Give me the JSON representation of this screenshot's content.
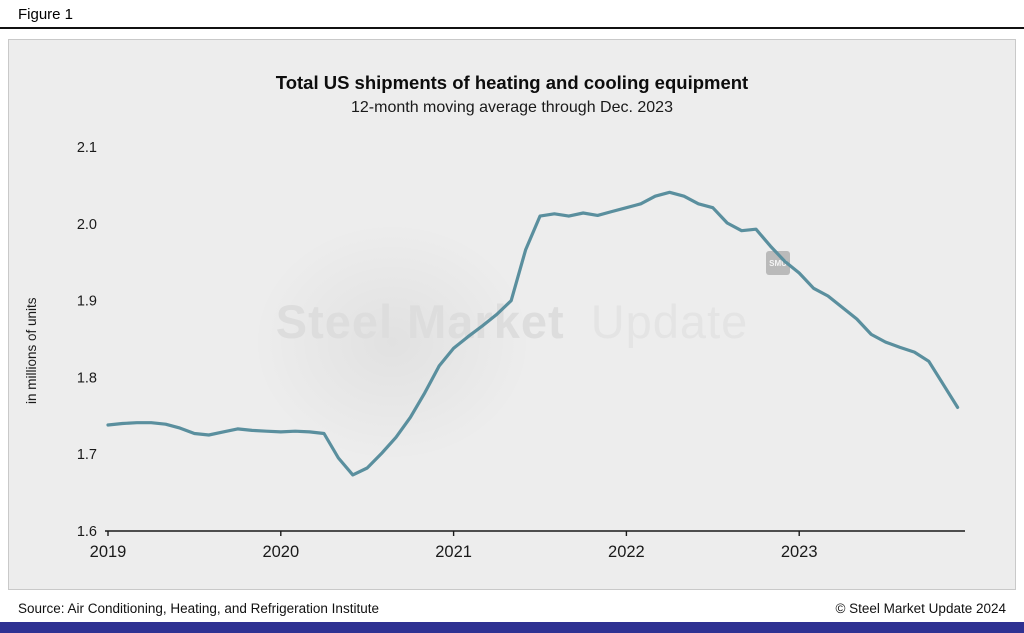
{
  "figure_label": "Figure 1",
  "title": "Total US shipments of heating and cooling equipment",
  "subtitle": "12-month moving average through Dec. 2023",
  "y_axis_label": "in millions of units",
  "watermark": {
    "primary": "Steel Market",
    "secondary": "Update",
    "badge": "SMU"
  },
  "footer": {
    "source": "Source: Air Conditioning, Heating, and Refrigeration Institute",
    "copyright": "© Steel Market Update 2024"
  },
  "colors": {
    "line": "#5A8F9E",
    "panel_bg": "#EDEDED",
    "footer_bar": "#2E3192",
    "axis": "#1a1a1a"
  },
  "chart_data": {
    "type": "line",
    "title": "Total US shipments of heating and cooling equipment",
    "subtitle": "12-month moving average through Dec. 2023",
    "xlabel": "",
    "ylabel": "in millions of units",
    "x_ticks": [
      "2019",
      "2020",
      "2021",
      "2022",
      "2023"
    ],
    "y_ticks": [
      1.6,
      1.7,
      1.8,
      1.9,
      2.0,
      2.1
    ],
    "ylim": [
      1.6,
      2.1
    ],
    "x_start": "2019-01",
    "x_end": "2023-12",
    "x_frequency": "monthly",
    "grid": false,
    "legend": false,
    "series": [
      {
        "name": "12-month moving average of US heating and cooling equipment shipments (millions of units)",
        "values": [
          1.738,
          1.74,
          1.741,
          1.741,
          1.739,
          1.734,
          1.727,
          1.725,
          1.729,
          1.733,
          1.731,
          1.73,
          1.729,
          1.73,
          1.729,
          1.727,
          1.695,
          1.673,
          1.682,
          1.701,
          1.722,
          1.748,
          1.78,
          1.815,
          1.838,
          1.853,
          1.867,
          1.882,
          1.9,
          1.966,
          2.01,
          2.013,
          2.01,
          2.014,
          2.011,
          2.016,
          2.021,
          2.026,
          2.036,
          2.041,
          2.036,
          2.026,
          2.021,
          2.001,
          1.991,
          1.993,
          1.971,
          1.951,
          1.936,
          1.916,
          1.906,
          1.891,
          1.876,
          1.856,
          1.846,
          1.839,
          1.833,
          1.821,
          1.791,
          1.761
        ]
      }
    ]
  }
}
